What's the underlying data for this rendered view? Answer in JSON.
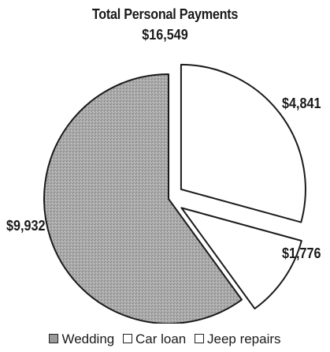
{
  "chart_data": {
    "type": "pie",
    "title": "Total Personal Payments",
    "total_label": "$16,549",
    "slices": [
      {
        "name": "Wedding",
        "value": 9932,
        "label": "$9,932",
        "fill": "#a9a9a9",
        "exploded": false
      },
      {
        "name": "Jeep repairs",
        "value": 1776,
        "label": "$1,776",
        "fill": "#ffffff",
        "exploded": true
      },
      {
        "name": "Car loan",
        "value": 4841,
        "label": "$4,841",
        "fill": "#ffffff",
        "exploded": true
      }
    ],
    "legend": [
      "Wedding",
      "Car loan",
      "Jeep repairs"
    ],
    "legend_placement": "bottom"
  }
}
